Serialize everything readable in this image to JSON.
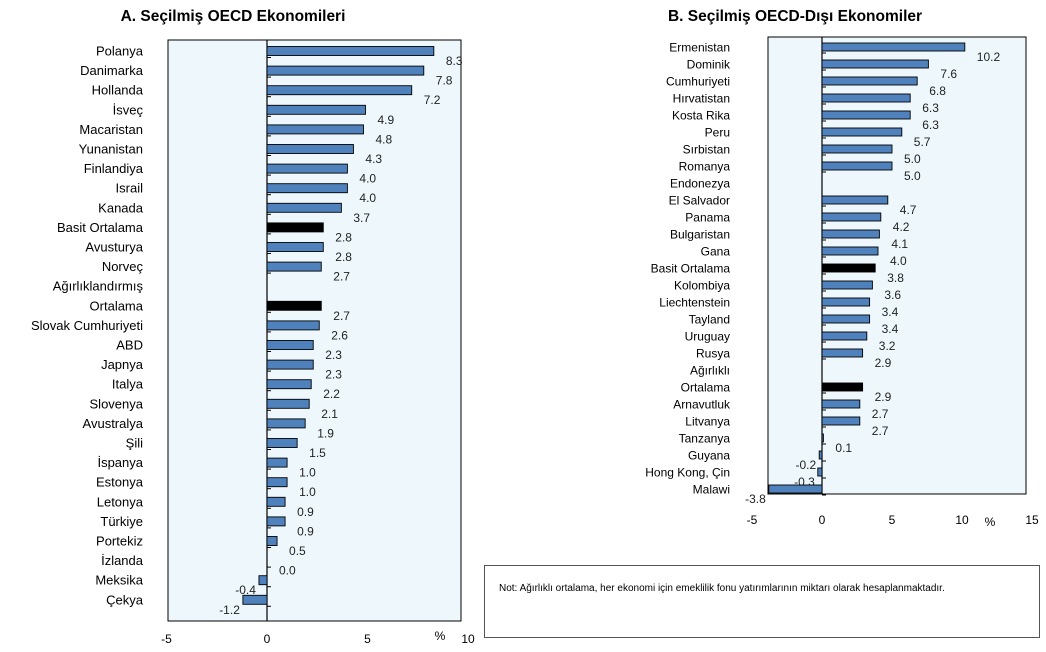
{
  "colors": {
    "bar": "#4f81bd",
    "bar_highlight": "#000000",
    "plot_bg": "#eef8fc",
    "outline": "#000000"
  },
  "chart_data": [
    {
      "type": "bar",
      "orientation": "horizontal",
      "title": "A. Seçilmiş OECD Ekonomileri",
      "unit": "%",
      "xlim": [
        -5,
        10
      ],
      "xticks": [
        "-5",
        "0",
        "5",
        "10"
      ],
      "categories": [
        "Polanya",
        "Danimarka",
        "Hollanda",
        "İsveç",
        "Macaristan",
        "Yunanistan",
        "Finlandiya",
        "Israil",
        "Kanada",
        "Basit Ortalama",
        "Avusturya",
        "Norveç",
        "Ağırlıklandırmış",
        "Ortalama",
        "Slovak Cumhuriyeti",
        "ABD",
        "Japnya",
        "Italya",
        "Slovenya",
        "Avustralya",
        "Şili",
        "İspanya",
        "Estonya",
        "Letonya",
        "Türkiye",
        "Portekiz",
        "İzlanda",
        "Meksika",
        "Çekya"
      ],
      "bars": [
        {
          "value": 8.3,
          "label": "8.3",
          "row": 0
        },
        {
          "value": 7.8,
          "label": "7.8",
          "row": 1
        },
        {
          "value": 7.2,
          "label": "7.2",
          "row": 2
        },
        {
          "value": 4.9,
          "label": "4.9",
          "row": 3
        },
        {
          "value": 4.8,
          "label": "4.8",
          "row": 4
        },
        {
          "value": 4.3,
          "label": "4.3",
          "row": 5
        },
        {
          "value": 4.0,
          "label": "4.0",
          "row": 6
        },
        {
          "value": 4.0,
          "label": "4.0",
          "row": 7
        },
        {
          "value": 3.7,
          "label": "3.7",
          "row": 8
        },
        {
          "value": 2.8,
          "label": "2.8",
          "row": 9,
          "highlight": true
        },
        {
          "value": 2.8,
          "label": "2.8",
          "row": 10
        },
        {
          "value": 2.7,
          "label": "2.7",
          "row": 11
        },
        {
          "value": 2.7,
          "label": "2.7",
          "row": 13,
          "highlight": true
        },
        {
          "value": 2.6,
          "label": "2.6",
          "row": 14
        },
        {
          "value": 2.3,
          "label": "2.3",
          "row": 15
        },
        {
          "value": 2.3,
          "label": "2.3",
          "row": 16
        },
        {
          "value": 2.2,
          "label": "2.2",
          "row": 17
        },
        {
          "value": 2.1,
          "label": "2.1",
          "row": 18
        },
        {
          "value": 1.9,
          "label": "1.9",
          "row": 19
        },
        {
          "value": 1.5,
          "label": "1.5",
          "row": 20
        },
        {
          "value": 1.0,
          "label": "1.0",
          "row": 21
        },
        {
          "value": 1.0,
          "label": "1.0",
          "row": 22
        },
        {
          "value": 0.9,
          "label": "0.9",
          "row": 23
        },
        {
          "value": 0.9,
          "label": "0.9",
          "row": 24
        },
        {
          "value": 0.5,
          "label": "0.5",
          "row": 25
        },
        {
          "value": 0.0,
          "label": "0.0",
          "row": 26
        },
        {
          "value": -0.4,
          "label": "-0.4",
          "row": 27
        },
        {
          "value": -1.2,
          "label": "-1.2",
          "row": 28
        }
      ]
    },
    {
      "type": "bar",
      "orientation": "horizontal",
      "title": "B. Seçilmiş OECD-Dışı Ekonomiler",
      "unit": "%",
      "xlim": [
        -5,
        15
      ],
      "xticks": [
        "-5",
        "0",
        "5",
        "10",
        "15"
      ],
      "categories": [
        "Ermenistan",
        "Dominik",
        "Cumhuriyeti",
        "Hırvatistan",
        "Kosta Rika",
        "Peru",
        "Sırbistan",
        "Romanya",
        "Endonezya",
        "El Salvador",
        "Panama",
        "Bulgaristan",
        "Gana",
        "Basit Ortalama",
        "Kolombiya",
        "Liechtenstein",
        "Tayland",
        "Uruguay",
        "Rusya",
        "Ağırlıklı",
        "Ortalama",
        "Arnavutluk",
        "Litvanya",
        "Tanzanya",
        "Guyana",
        "Hong Kong, Çin",
        "Malawi"
      ],
      "bars": [
        {
          "value": 10.2,
          "label": "10.2",
          "row": 0
        },
        {
          "value": 7.6,
          "label": "7.6",
          "row": 1
        },
        {
          "value": 6.8,
          "label": "6.8",
          "row": 2
        },
        {
          "value": 6.3,
          "label": "6.3",
          "row": 3
        },
        {
          "value": 6.3,
          "label": "6.3",
          "row": 4
        },
        {
          "value": 5.7,
          "label": "5.7",
          "row": 5
        },
        {
          "value": 5.0,
          "label": "5.0",
          "row": 6
        },
        {
          "value": 5.0,
          "label": "5.0",
          "row": 7
        },
        {
          "value": 4.7,
          "label": "4.7",
          "row": 9
        },
        {
          "value": 4.2,
          "label": "4.2",
          "row": 10
        },
        {
          "value": 4.1,
          "label": "4.1",
          "row": 11
        },
        {
          "value": 4.0,
          "label": "4.0",
          "row": 12
        },
        {
          "value": 3.8,
          "label": "3.8",
          "row": 13,
          "highlight": true
        },
        {
          "value": 3.6,
          "label": "3.6",
          "row": 14
        },
        {
          "value": 3.4,
          "label": "3.4",
          "row": 15
        },
        {
          "value": 3.4,
          "label": "3.4",
          "row": 16
        },
        {
          "value": 3.2,
          "label": "3.2",
          "row": 17
        },
        {
          "value": 2.9,
          "label": "2.9",
          "row": 18
        },
        {
          "value": 2.9,
          "label": "2.9",
          "row": 20,
          "highlight": true
        },
        {
          "value": 2.7,
          "label": "2.7",
          "row": 21
        },
        {
          "value": 2.7,
          "label": "2.7",
          "row": 22
        },
        {
          "value": 0.1,
          "label": "0.1",
          "row": 23
        },
        {
          "value": -0.2,
          "label": "-0.2",
          "row": 24
        },
        {
          "value": -0.3,
          "label": "-0.3",
          "row": 25
        },
        {
          "value": -3.8,
          "label": "-3.8",
          "row": 26
        }
      ]
    }
  ],
  "note": "Not: Ağırlıklı ortalama, her ekonomi için emeklilik fonu yatırımlarının miktarı olarak hesaplanmaktadır."
}
